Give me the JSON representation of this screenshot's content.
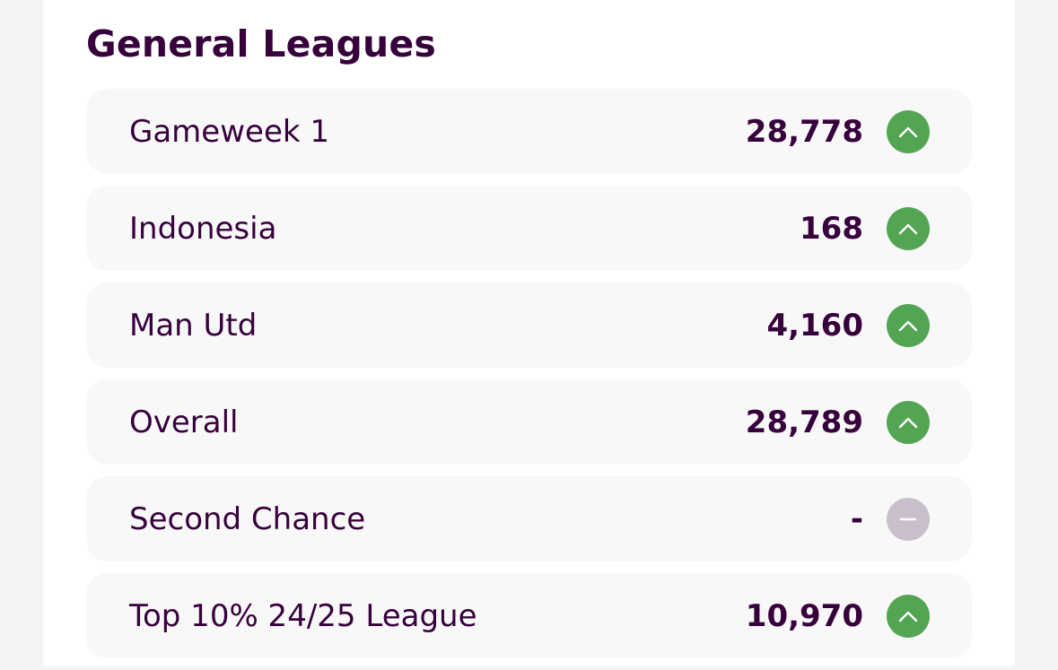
{
  "section": {
    "title": "General Leagues"
  },
  "colors": {
    "text": "#37003c",
    "row_background": "#f8f8f8",
    "movement_up": "#53a453",
    "movement_none": "#c9bfcc"
  },
  "leagues": [
    {
      "name": "Gameweek 1",
      "rank": "28,778",
      "movement": "up",
      "icon": "arrow-up-icon"
    },
    {
      "name": "Indonesia",
      "rank": "168",
      "movement": "up",
      "icon": "arrow-up-icon"
    },
    {
      "name": "Man Utd",
      "rank": "4,160",
      "movement": "up",
      "icon": "arrow-up-icon"
    },
    {
      "name": "Overall",
      "rank": "28,789",
      "movement": "up",
      "icon": "arrow-up-icon"
    },
    {
      "name": "Second Chance",
      "rank": "-",
      "movement": "none",
      "icon": "no-change-icon"
    },
    {
      "name": "Top 10% 24/25 League",
      "rank": "10,970",
      "movement": "up",
      "icon": "arrow-up-icon"
    }
  ]
}
